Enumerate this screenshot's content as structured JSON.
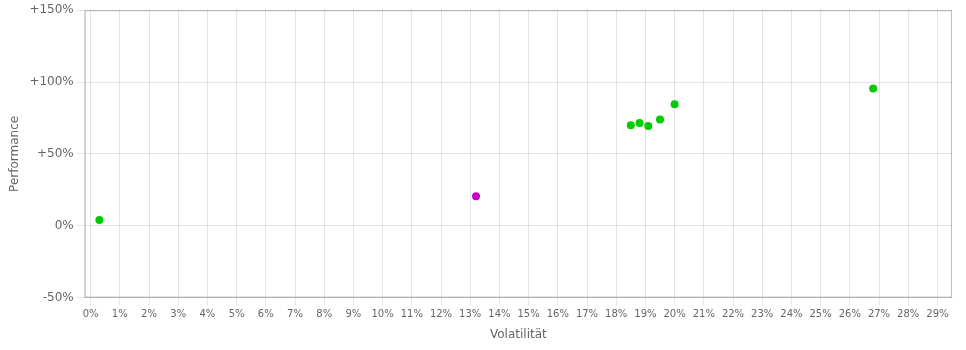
{
  "chart_data": {
    "type": "scatter",
    "xlabel": "Volatilität",
    "ylabel": "Performance",
    "xlim": [
      -0.002,
      0.295
    ],
    "ylim": [
      -0.5,
      1.5
    ],
    "xticks": [
      {
        "value": 0.0,
        "label": "0%"
      },
      {
        "value": 0.01,
        "label": "1%"
      },
      {
        "value": 0.02,
        "label": "2%"
      },
      {
        "value": 0.03,
        "label": "3%"
      },
      {
        "value": 0.04,
        "label": "4%"
      },
      {
        "value": 0.05,
        "label": "5%"
      },
      {
        "value": 0.06,
        "label": "6%"
      },
      {
        "value": 0.07,
        "label": "7%"
      },
      {
        "value": 0.08,
        "label": "8%"
      },
      {
        "value": 0.09,
        "label": "9%"
      },
      {
        "value": 0.1,
        "label": "10%"
      },
      {
        "value": 0.11,
        "label": "11%"
      },
      {
        "value": 0.12,
        "label": "12%"
      },
      {
        "value": 0.13,
        "label": "13%"
      },
      {
        "value": 0.14,
        "label": "14%"
      },
      {
        "value": 0.15,
        "label": "15%"
      },
      {
        "value": 0.16,
        "label": "16%"
      },
      {
        "value": 0.17,
        "label": "17%"
      },
      {
        "value": 0.18,
        "label": "18%"
      },
      {
        "value": 0.19,
        "label": "19%"
      },
      {
        "value": 0.2,
        "label": "20%"
      },
      {
        "value": 0.21,
        "label": "21%"
      },
      {
        "value": 0.22,
        "label": "22%"
      },
      {
        "value": 0.23,
        "label": "23%"
      },
      {
        "value": 0.24,
        "label": "24%"
      },
      {
        "value": 0.25,
        "label": "25%"
      },
      {
        "value": 0.26,
        "label": "26%"
      },
      {
        "value": 0.27,
        "label": "27%"
      },
      {
        "value": 0.28,
        "label": "28%"
      },
      {
        "value": 0.29,
        "label": "29%"
      }
    ],
    "yticks": [
      {
        "value": -0.5,
        "label": "-50%"
      },
      {
        "value": 0.0,
        "label": "0%"
      },
      {
        "value": 0.5,
        "label": "+50%"
      },
      {
        "value": 1.0,
        "label": "+100%"
      },
      {
        "value": 1.5,
        "label": "+150%"
      }
    ],
    "grid": true,
    "series": [
      {
        "color": "#00cc00",
        "x": [
          0.003,
          0.185,
          0.188,
          0.191,
          0.195,
          0.2,
          0.268
        ],
        "values": [
          0.04,
          0.7,
          0.715,
          0.695,
          0.74,
          0.845,
          0.955
        ]
      },
      {
        "color": "#cc00cc",
        "x": [
          0.132
        ],
        "values": [
          0.205
        ]
      }
    ]
  }
}
